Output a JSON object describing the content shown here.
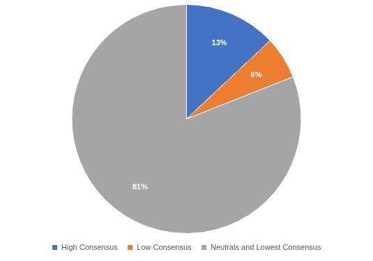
{
  "chart_data": {
    "type": "pie",
    "categories": [
      "High Consensus",
      "Low Consensus",
      "Neutrals and Lowest Consensus"
    ],
    "values": [
      13,
      6,
      81
    ],
    "value_labels": [
      "13%",
      "6%",
      "81%"
    ],
    "colors": [
      "#4472c4",
      "#ed7d31",
      "#a5a5a5"
    ],
    "data_labels": true,
    "legend": "bottom"
  }
}
